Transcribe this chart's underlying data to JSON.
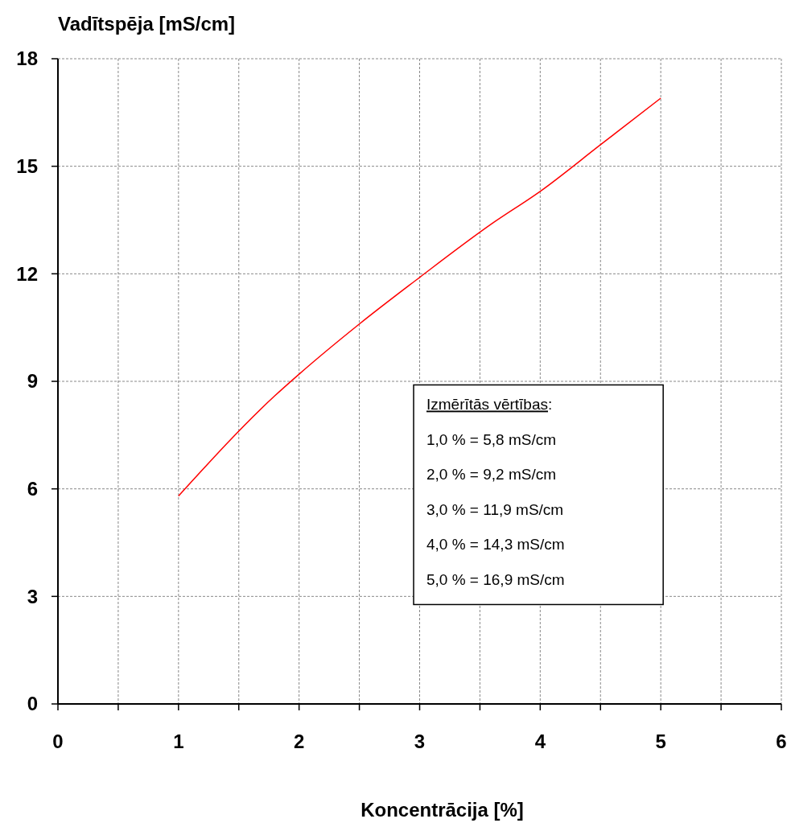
{
  "chart_data": {
    "type": "line",
    "xlabel": "Koncentrācija [%]",
    "ylabel": "Vadītspēja [mS/cm]",
    "x": [
      1,
      1.8,
      2,
      2.5,
      3,
      3.6,
      4,
      4.5,
      5
    ],
    "series": [
      {
        "color": "#ff0000",
        "values": [
          5.8,
          8.6,
          9.2,
          10.6,
          11.9,
          13.4,
          14.3,
          15.6,
          16.9
        ]
      }
    ],
    "xlim": [
      0,
      6
    ],
    "ylim": [
      0,
      18
    ],
    "xticks": [
      0,
      {
        "value": 0.5,
        "label": null
      },
      1,
      {
        "value": 1.5,
        "label": null
      },
      2,
      {
        "value": 2.5,
        "label": null
      },
      3,
      {
        "value": 3.5,
        "label": null
      },
      4,
      {
        "value": 4.5,
        "label": null
      },
      5,
      {
        "value": 5.5,
        "label": null
      },
      6
    ],
    "yticks": [
      0,
      3,
      6,
      9,
      12,
      15,
      18
    ],
    "grid": true,
    "marker": "none",
    "line_style": "solid",
    "annotations": [
      "Izmērītās vērtības:",
      "1,0 % = 5,8 mS/cm",
      "2,0 % = 9,2 mS/cm",
      "3,0 % = 11,9 mS/cm",
      "4,0 % = 14,3 mS/cm",
      "5,0 % = 16,9 mS/cm"
    ]
  }
}
